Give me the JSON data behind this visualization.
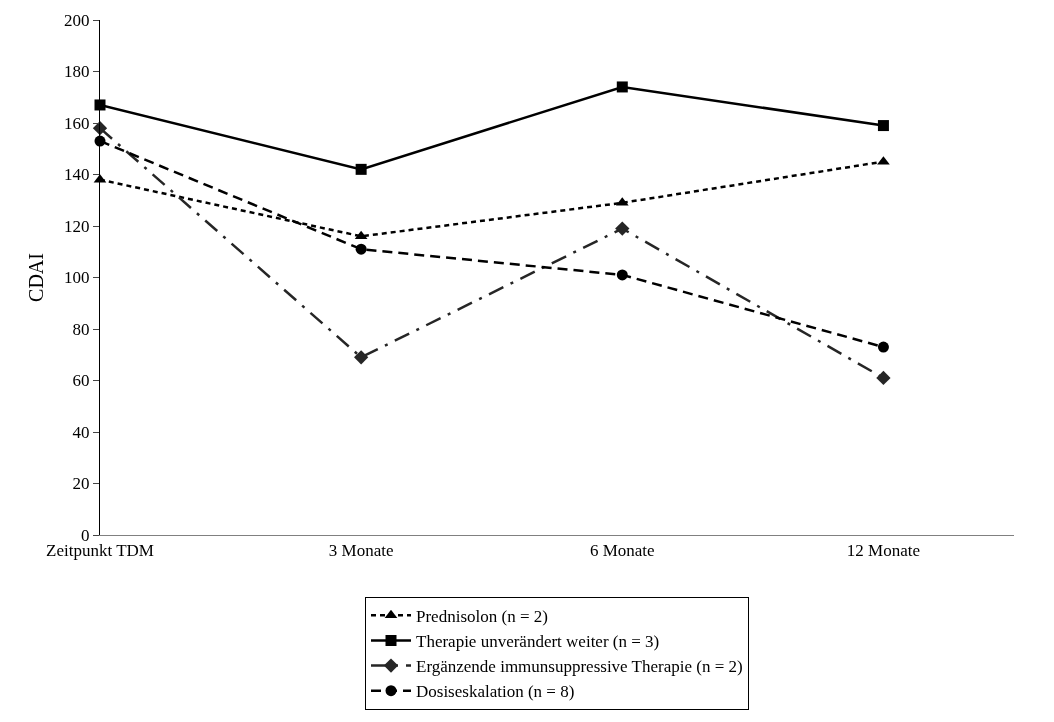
{
  "chart_data": {
    "type": "line",
    "ylabel": "CDAI",
    "categories": [
      "Zeitpunkt TDM",
      "3 Monate",
      "6 Monate",
      "12 Monate"
    ],
    "ylim": [
      0,
      200
    ],
    "yticks": [
      0,
      20,
      40,
      60,
      80,
      100,
      120,
      140,
      160,
      180,
      200
    ],
    "grid": false,
    "legend": "bottom",
    "series": [
      {
        "name": "Prednisolon (n = 2)",
        "color": "#000000",
        "values": [
          138,
          116,
          129,
          145
        ],
        "marker": "triangle",
        "line_style": "dotted"
      },
      {
        "name": "Therapie unverändert weiter (n = 3)",
        "color": "#000000",
        "values": [
          167,
          142,
          174,
          159
        ],
        "marker": "square",
        "line_style": "solid"
      },
      {
        "name": "Ergänzende immunsuppressive Therapie (n = 2)",
        "color": "#262626",
        "values": [
          158,
          69,
          119,
          61
        ],
        "marker": "diamond",
        "line_style": "dashdot"
      },
      {
        "name": "Dosiseskalation (n = 8)",
        "color": "#000000",
        "values": [
          153,
          111,
          101,
          73
        ],
        "marker": "circle",
        "line_style": "dashed"
      }
    ]
  }
}
